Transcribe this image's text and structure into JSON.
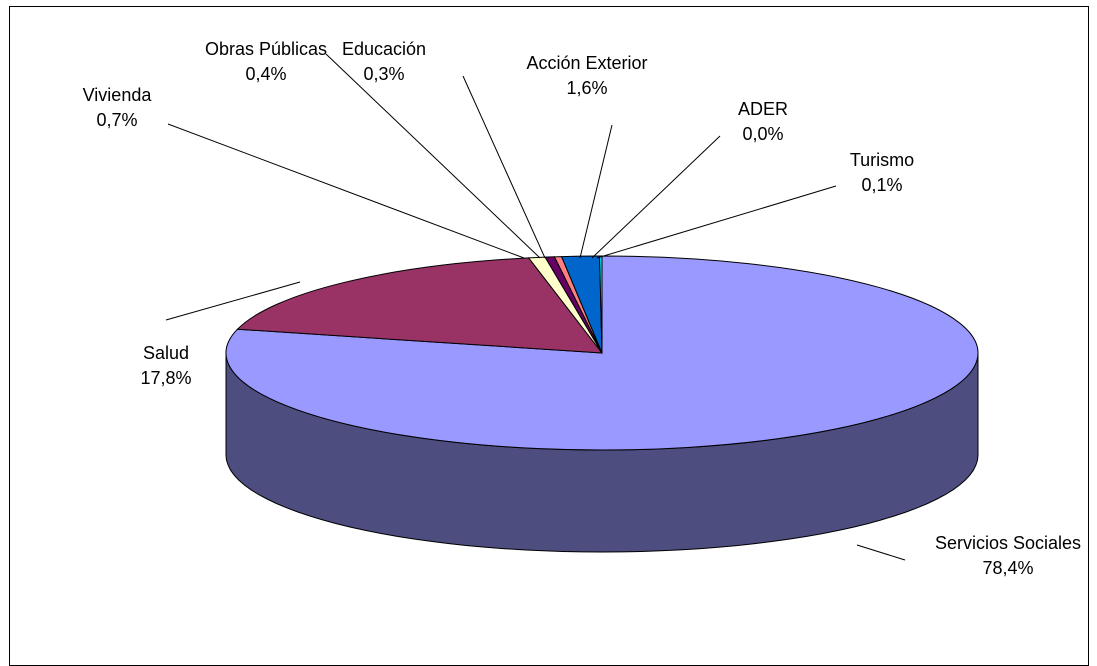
{
  "chart_data": {
    "type": "pie",
    "style": "3d",
    "slices": [
      {
        "label": "Servicios Sociales",
        "value": 78.4,
        "display": "78,4%",
        "color": "#9999ff"
      },
      {
        "label": "Salud",
        "value": 17.8,
        "display": "17,8%",
        "color": "#993366"
      },
      {
        "label": "Vivienda",
        "value": 0.7,
        "display": "0,7%",
        "color": "#ffffcc"
      },
      {
        "label": "Obras Públicas",
        "value": 0.4,
        "display": "0,4%",
        "color": "#660066"
      },
      {
        "label": "Educación",
        "value": 0.3,
        "display": "0,3%",
        "color": "#ff8080"
      },
      {
        "label": "Acción Exterior",
        "value": 1.6,
        "display": "1,6%",
        "color": "#0066cc"
      },
      {
        "label": "ADER",
        "value": 0.0,
        "display": "0,0%",
        "color": "#ccccff"
      },
      {
        "label": "Turismo",
        "value": 0.1,
        "display": "0,1%",
        "color": "#00ffff"
      }
    ]
  }
}
